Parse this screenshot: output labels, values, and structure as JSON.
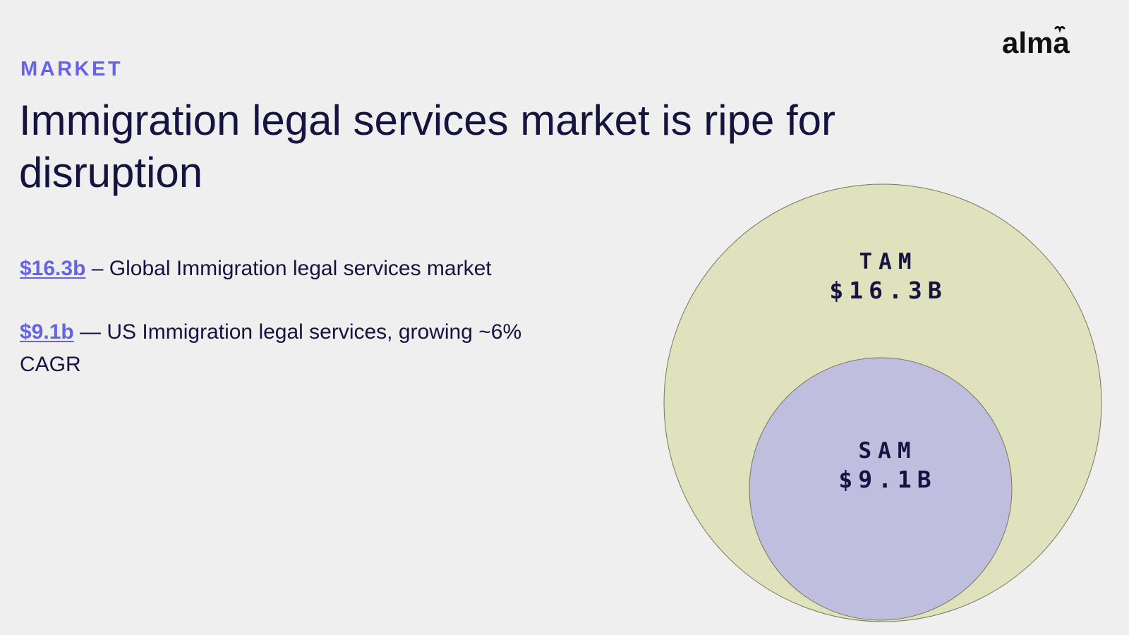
{
  "brand": {
    "logo_text": "alma"
  },
  "section_label": "MARKET",
  "title": "Immigration legal services market is ripe for disruption",
  "stats": [
    {
      "value": "$16.3b",
      "text": " – Global Immigration legal services market"
    },
    {
      "value": "$9.1b",
      "text": " — US Immigration legal services, growing ~6% CAGR"
    }
  ],
  "diagram": {
    "outer": {
      "label": "TAM",
      "value": "$16.3B"
    },
    "inner": {
      "label": "SAM",
      "value": "$9.1B"
    }
  },
  "colors": {
    "background": "#efefef",
    "accent": "#6563e8",
    "text": "#15133f",
    "tam_fill": "#e0e2be",
    "sam_fill": "#bfbede"
  }
}
